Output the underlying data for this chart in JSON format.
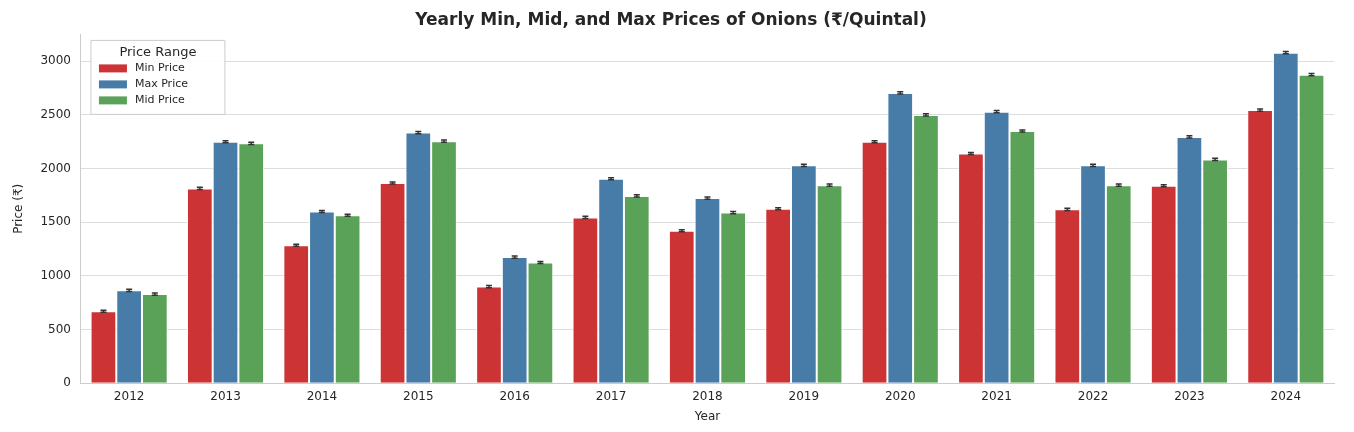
{
  "chart_data": {
    "type": "bar",
    "title": "Yearly Min, Mid, and Max Prices of Onions (₹/Quintal)",
    "xlabel": "Year",
    "ylabel": "Price (₹)",
    "legend_title": "Price Range",
    "categories": [
      "2012",
      "2013",
      "2014",
      "2015",
      "2016",
      "2017",
      "2018",
      "2019",
      "2020",
      "2021",
      "2022",
      "2023",
      "2024"
    ],
    "series": [
      {
        "name": "Min Price",
        "color": "#cb3335",
        "values": [
          670,
          1815,
          1285,
          1865,
          900,
          1545,
          1420,
          1625,
          2250,
          2140,
          1620,
          1840,
          2545
        ],
        "errors": [
          10,
          10,
          10,
          10,
          10,
          10,
          10,
          10,
          10,
          10,
          10,
          10,
          10
        ]
      },
      {
        "name": "Max Price",
        "color": "#477ca8",
        "values": [
          865,
          2250,
          1600,
          2335,
          1175,
          1905,
          1725,
          2030,
          2705,
          2530,
          2030,
          2295,
          3080
        ],
        "errors": [
          10,
          10,
          10,
          10,
          10,
          10,
          10,
          10,
          10,
          10,
          10,
          10,
          10
        ]
      },
      {
        "name": "Mid Price",
        "color": "#59a257",
        "values": [
          830,
          2235,
          1565,
          2255,
          1125,
          1745,
          1590,
          1845,
          2500,
          2350,
          1845,
          2085,
          2875
        ],
        "errors": [
          10,
          10,
          10,
          10,
          10,
          10,
          10,
          10,
          10,
          10,
          10,
          10,
          10
        ]
      }
    ],
    "ylim": [
      0,
      3250
    ],
    "yticks": [
      0,
      500,
      1000,
      1500,
      2000,
      2500,
      3000
    ],
    "grid": "y",
    "legend": "top left"
  }
}
